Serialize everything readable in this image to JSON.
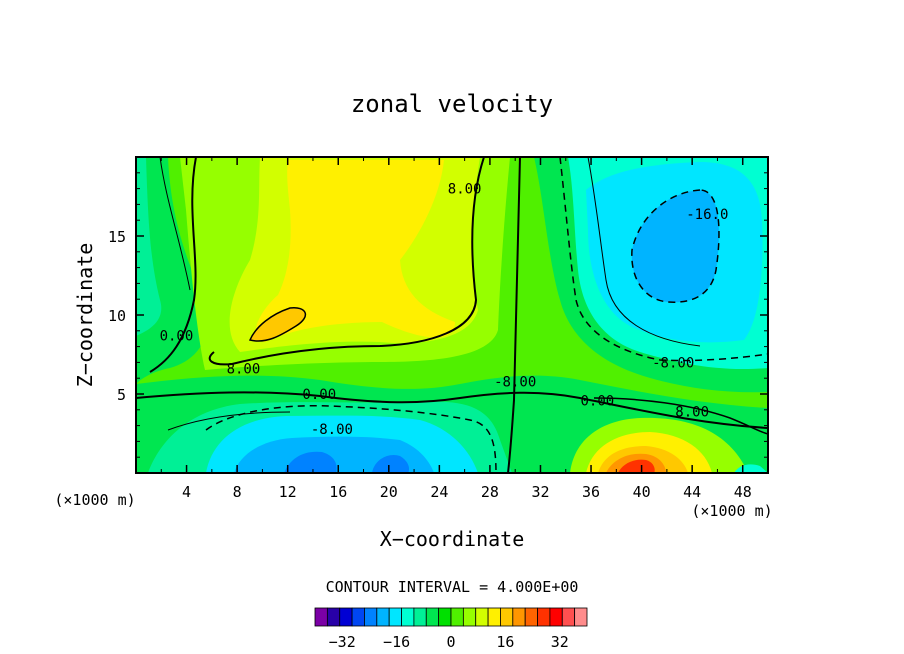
{
  "chart_data": {
    "type": "heatmap",
    "title": "zonal velocity",
    "xlabel": "X−coordinate",
    "ylabel": "Z−coordinate",
    "x_unit": "(×1000 m)",
    "y_unit": "(×1000 m)",
    "xlim": [
      0,
      50
    ],
    "ylim": [
      0,
      20
    ],
    "x_ticks": [
      "4",
      "8",
      "12",
      "16",
      "20",
      "24",
      "28",
      "32",
      "36",
      "40",
      "44",
      "48"
    ],
    "x_tick_values": [
      4,
      8,
      12,
      16,
      20,
      24,
      28,
      32,
      36,
      40,
      44,
      48
    ],
    "y_ticks": [
      "5",
      "10",
      "15"
    ],
    "y_tick_values": [
      5,
      10,
      15
    ],
    "contour_interval_label": "CONTOUR INTERVAL = 4.000E+00",
    "contour_labels": [
      {
        "text": "8.00",
        "x": 26.0,
        "y": 18.0
      },
      {
        "text": "-16.0",
        "x": 45.2,
        "y": 16.4
      },
      {
        "text": "0.00",
        "x": 3.2,
        "y": 8.7
      },
      {
        "text": "8.00",
        "x": 8.5,
        "y": 6.6
      },
      {
        "text": "-8.00",
        "x": 42.5,
        "y": 7.0
      },
      {
        "text": "0.00",
        "x": 14.5,
        "y": 5.0
      },
      {
        "text": "-8.00",
        "x": 30.0,
        "y": 5.8
      },
      {
        "text": "0.00",
        "x": 36.5,
        "y": 4.6
      },
      {
        "text": "8.00",
        "x": 44.0,
        "y": 3.9
      },
      {
        "text": "-8.00",
        "x": 15.5,
        "y": 2.8
      }
    ],
    "features": [
      {
        "name": "upper-left positive core",
        "x": 18,
        "y": 14,
        "value": 12
      },
      {
        "name": "inner positive maximum",
        "x": 11.5,
        "y": 9.2,
        "value": 16
      },
      {
        "name": "upper-right negative core",
        "x": 44,
        "y": 13,
        "value": -16
      },
      {
        "name": "lower negative core",
        "x": 16,
        "y": 0.8,
        "value": -16
      },
      {
        "name": "lower-right positive maximum",
        "x": 40,
        "y": 0.6,
        "value": 28
      }
    ],
    "colorbar": {
      "min": -40,
      "max": 40,
      "tick_labels": [
        "−32",
        "−16",
        "0",
        "16",
        "32"
      ],
      "tick_values": [
        -32,
        -16,
        0,
        16,
        32
      ],
      "colors": [
        "#7b00a6",
        "#2800a8",
        "#0000d4",
        "#0046f2",
        "#0082ff",
        "#00b4ff",
        "#00e6ff",
        "#00ffd2",
        "#00f096",
        "#00e650",
        "#00e000",
        "#50f000",
        "#96ff00",
        "#d2ff00",
        "#fff000",
        "#ffc800",
        "#ff9600",
        "#ff6400",
        "#ff3200",
        "#ff0000",
        "#ff5050",
        "#ff8c8c"
      ]
    }
  }
}
